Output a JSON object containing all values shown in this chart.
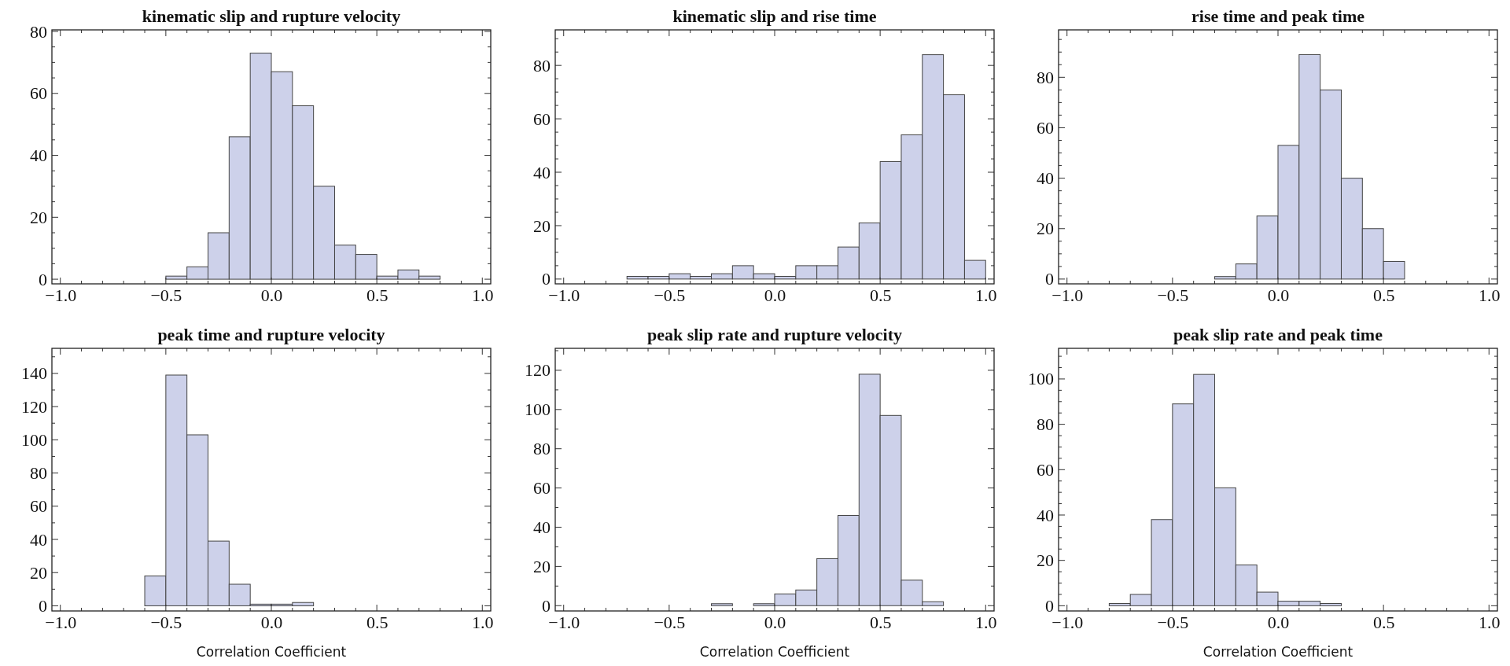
{
  "chart_data": [
    {
      "type": "histogram",
      "title": "kinematic slip and rupture velocity",
      "color": "#cdd1ea",
      "bins": [
        -0.5,
        -0.4,
        -0.3,
        -0.2,
        -0.1,
        0,
        0.1,
        0.2,
        0.3,
        0.4,
        0.5,
        0.6,
        0.7,
        0.8
      ],
      "values": [
        1,
        4,
        15,
        46,
        73,
        67,
        56,
        30,
        11,
        8,
        1,
        3,
        1
      ],
      "xlim": [
        -1.04,
        1.04
      ],
      "ylim": [
        -1.5,
        80.5
      ],
      "xticks": [
        {
          "value": -1,
          "label": "−1.0"
        },
        {
          "value": -0.9,
          "label": null
        },
        {
          "value": -0.8,
          "label": null
        },
        {
          "value": -0.7,
          "label": null
        },
        {
          "value": -0.6,
          "label": null
        },
        {
          "value": -0.5,
          "label": "−0.5"
        },
        {
          "value": -0.4,
          "label": null
        },
        {
          "value": -0.3,
          "label": null
        },
        {
          "value": -0.2,
          "label": null
        },
        {
          "value": -0.1,
          "label": null
        },
        {
          "value": 0,
          "label": "0.0"
        },
        {
          "value": 0.1,
          "label": null
        },
        {
          "value": 0.2,
          "label": null
        },
        {
          "value": 0.3,
          "label": null
        },
        {
          "value": 0.4,
          "label": null
        },
        {
          "value": 0.5,
          "label": "0.5"
        },
        {
          "value": 0.6,
          "label": null
        },
        {
          "value": 0.7,
          "label": null
        },
        {
          "value": 0.8,
          "label": null
        },
        {
          "value": 0.9,
          "label": null
        },
        {
          "value": 1,
          "label": "1.0"
        }
      ],
      "yticks": [
        0,
        {
          "value": 5,
          "label": null
        },
        {
          "value": 10,
          "label": null
        },
        {
          "value": 15,
          "label": null
        },
        20,
        {
          "value": 25,
          "label": null
        },
        {
          "value": 30,
          "label": null
        },
        {
          "value": 35,
          "label": null
        },
        40,
        {
          "value": 45,
          "label": null
        },
        {
          "value": 50,
          "label": null
        },
        {
          "value": 55,
          "label": null
        },
        60,
        {
          "value": 65,
          "label": null
        },
        {
          "value": 70,
          "label": null
        },
        {
          "value": 75,
          "label": null
        },
        80
      ]
    },
    {
      "type": "histogram",
      "title": "kinematic slip and rise time",
      "color": "#cdd1ea",
      "bins": [
        -0.7,
        -0.6,
        -0.5,
        -0.4,
        -0.3,
        -0.2,
        -0.1,
        0,
        0.1,
        0.2,
        0.3,
        0.4,
        0.5,
        0.6,
        0.7,
        0.8,
        0.9,
        1.0
      ],
      "values": [
        1,
        1,
        2,
        1,
        2,
        5,
        2,
        1,
        5,
        5,
        12,
        21,
        44,
        54,
        84,
        69,
        7
      ],
      "xlim": [
        -1.04,
        1.04
      ],
      "ylim": [
        -1.8,
        93.3
      ],
      "xticks": [
        {
          "value": -1,
          "label": "−1.0"
        },
        {
          "value": -0.9,
          "label": null
        },
        {
          "value": -0.8,
          "label": null
        },
        {
          "value": -0.7,
          "label": null
        },
        {
          "value": -0.6,
          "label": null
        },
        {
          "value": -0.5,
          "label": "−0.5"
        },
        {
          "value": -0.4,
          "label": null
        },
        {
          "value": -0.3,
          "label": null
        },
        {
          "value": -0.2,
          "label": null
        },
        {
          "value": -0.1,
          "label": null
        },
        {
          "value": 0,
          "label": "0.0"
        },
        {
          "value": 0.1,
          "label": null
        },
        {
          "value": 0.2,
          "label": null
        },
        {
          "value": 0.3,
          "label": null
        },
        {
          "value": 0.4,
          "label": null
        },
        {
          "value": 0.5,
          "label": "0.5"
        },
        {
          "value": 0.6,
          "label": null
        },
        {
          "value": 0.7,
          "label": null
        },
        {
          "value": 0.8,
          "label": null
        },
        {
          "value": 0.9,
          "label": null
        },
        {
          "value": 1,
          "label": "1.0"
        }
      ],
      "yticks": [
        0,
        {
          "value": 5,
          "label": null
        },
        {
          "value": 10,
          "label": null
        },
        {
          "value": 15,
          "label": null
        },
        20,
        {
          "value": 25,
          "label": null
        },
        {
          "value": 30,
          "label": null
        },
        {
          "value": 35,
          "label": null
        },
        40,
        {
          "value": 45,
          "label": null
        },
        {
          "value": 50,
          "label": null
        },
        {
          "value": 55,
          "label": null
        },
        60,
        {
          "value": 65,
          "label": null
        },
        {
          "value": 70,
          "label": null
        },
        {
          "value": 75,
          "label": null
        },
        80,
        {
          "value": 85,
          "label": null
        },
        {
          "value": 90,
          "label": null
        }
      ]
    },
    {
      "type": "histogram",
      "title": "rise time and peak time",
      "color": "#cdd1ea",
      "bins": [
        -0.3,
        -0.2,
        -0.1,
        0,
        0.1,
        0.2,
        0.3,
        0.4,
        0.5,
        0.6
      ],
      "values": [
        1,
        6,
        25,
        53,
        89,
        75,
        40,
        20,
        7
      ],
      "xlim": [
        -1.04,
        1.04
      ],
      "ylim": [
        -1.9,
        98.8
      ],
      "xticks": [
        {
          "value": -1,
          "label": "−1.0"
        },
        {
          "value": -0.9,
          "label": null
        },
        {
          "value": -0.8,
          "label": null
        },
        {
          "value": -0.7,
          "label": null
        },
        {
          "value": -0.6,
          "label": null
        },
        {
          "value": -0.5,
          "label": "−0.5"
        },
        {
          "value": -0.4,
          "label": null
        },
        {
          "value": -0.3,
          "label": null
        },
        {
          "value": -0.2,
          "label": null
        },
        {
          "value": -0.1,
          "label": null
        },
        {
          "value": 0,
          "label": "0.0"
        },
        {
          "value": 0.1,
          "label": null
        },
        {
          "value": 0.2,
          "label": null
        },
        {
          "value": 0.3,
          "label": null
        },
        {
          "value": 0.4,
          "label": null
        },
        {
          "value": 0.5,
          "label": "0.5"
        },
        {
          "value": 0.6,
          "label": null
        },
        {
          "value": 0.7,
          "label": null
        },
        {
          "value": 0.8,
          "label": null
        },
        {
          "value": 0.9,
          "label": null
        },
        {
          "value": 1,
          "label": "1.0"
        }
      ],
      "yticks": [
        0,
        {
          "value": 5,
          "label": null
        },
        {
          "value": 10,
          "label": null
        },
        {
          "value": 15,
          "label": null
        },
        20,
        {
          "value": 25,
          "label": null
        },
        {
          "value": 30,
          "label": null
        },
        {
          "value": 35,
          "label": null
        },
        40,
        {
          "value": 45,
          "label": null
        },
        {
          "value": 50,
          "label": null
        },
        {
          "value": 55,
          "label": null
        },
        60,
        {
          "value": 65,
          "label": null
        },
        {
          "value": 70,
          "label": null
        },
        {
          "value": 75,
          "label": null
        },
        80,
        {
          "value": 85,
          "label": null
        },
        {
          "value": 90,
          "label": null
        },
        {
          "value": 95,
          "label": null
        }
      ]
    },
    {
      "type": "histogram",
      "title": "peak time and rupture velocity",
      "xlabel": "Correlation Coefficient",
      "color": "#cdd1ea",
      "bins": [
        -0.6,
        -0.5,
        -0.4,
        -0.3,
        -0.2,
        -0.1,
        0,
        0.1,
        0.2
      ],
      "values": [
        18,
        139,
        103,
        39,
        13,
        1,
        1,
        2
      ],
      "xlim": [
        -1.04,
        1.04
      ],
      "ylim": [
        -3.1,
        155.1
      ],
      "xticks": [
        {
          "value": -1,
          "label": "−1.0"
        },
        {
          "value": -0.9,
          "label": null
        },
        {
          "value": -0.8,
          "label": null
        },
        {
          "value": -0.7,
          "label": null
        },
        {
          "value": -0.6,
          "label": null
        },
        {
          "value": -0.5,
          "label": "−0.5"
        },
        {
          "value": -0.4,
          "label": null
        },
        {
          "value": -0.3,
          "label": null
        },
        {
          "value": -0.2,
          "label": null
        },
        {
          "value": -0.1,
          "label": null
        },
        {
          "value": 0,
          "label": "0.0"
        },
        {
          "value": 0.1,
          "label": null
        },
        {
          "value": 0.2,
          "label": null
        },
        {
          "value": 0.3,
          "label": null
        },
        {
          "value": 0.4,
          "label": null
        },
        {
          "value": 0.5,
          "label": "0.5"
        },
        {
          "value": 0.6,
          "label": null
        },
        {
          "value": 0.7,
          "label": null
        },
        {
          "value": 0.8,
          "label": null
        },
        {
          "value": 0.9,
          "label": null
        },
        {
          "value": 1,
          "label": "1.0"
        }
      ],
      "yticks": [
        0,
        {
          "value": 10,
          "label": null
        },
        20,
        {
          "value": 30,
          "label": null
        },
        40,
        {
          "value": 50,
          "label": null
        },
        60,
        {
          "value": 70,
          "label": null
        },
        80,
        {
          "value": 90,
          "label": null
        },
        100,
        {
          "value": 110,
          "label": null
        },
        120,
        {
          "value": 130,
          "label": null
        },
        140,
        {
          "value": 150,
          "label": null
        }
      ]
    },
    {
      "type": "histogram",
      "title": "peak slip rate and rupture velocity",
      "xlabel": "Correlation Coefficient",
      "color": "#cdd1ea",
      "bins": [
        -0.3,
        -0.2,
        -0.1,
        0,
        0.1,
        0.2,
        0.3,
        0.4,
        0.5,
        0.6,
        0.7,
        0.8
      ],
      "values": [
        1,
        0,
        1,
        6,
        8,
        24,
        46,
        118,
        97,
        13,
        2
      ],
      "xlim": [
        -1.04,
        1.04
      ],
      "ylim": [
        -2.7,
        131.2
      ],
      "xticks": [
        {
          "value": -1,
          "label": "−1.0"
        },
        {
          "value": -0.9,
          "label": null
        },
        {
          "value": -0.8,
          "label": null
        },
        {
          "value": -0.7,
          "label": null
        },
        {
          "value": -0.6,
          "label": null
        },
        {
          "value": -0.5,
          "label": "−0.5"
        },
        {
          "value": -0.4,
          "label": null
        },
        {
          "value": -0.3,
          "label": null
        },
        {
          "value": -0.2,
          "label": null
        },
        {
          "value": -0.1,
          "label": null
        },
        {
          "value": 0,
          "label": "0.0"
        },
        {
          "value": 0.1,
          "label": null
        },
        {
          "value": 0.2,
          "label": null
        },
        {
          "value": 0.3,
          "label": null
        },
        {
          "value": 0.4,
          "label": null
        },
        {
          "value": 0.5,
          "label": "0.5"
        },
        {
          "value": 0.6,
          "label": null
        },
        {
          "value": 0.7,
          "label": null
        },
        {
          "value": 0.8,
          "label": null
        },
        {
          "value": 0.9,
          "label": null
        },
        {
          "value": 1,
          "label": "1.0"
        }
      ],
      "yticks": [
        0,
        {
          "value": 10,
          "label": null
        },
        20,
        {
          "value": 30,
          "label": null
        },
        40,
        {
          "value": 50,
          "label": null
        },
        60,
        {
          "value": 70,
          "label": null
        },
        80,
        {
          "value": 90,
          "label": null
        },
        100,
        {
          "value": 110,
          "label": null
        },
        120,
        {
          "value": 130,
          "label": null
        }
      ]
    },
    {
      "type": "histogram",
      "title": "peak slip rate and peak time",
      "xlabel": "Correlation Coefficient",
      "color": "#cdd1ea",
      "bins": [
        -0.8,
        -0.7,
        -0.6,
        -0.5,
        -0.4,
        -0.3,
        -0.2,
        -0.1,
        0,
        0.1,
        0.2,
        0.3
      ],
      "values": [
        1,
        5,
        38,
        89,
        102,
        52,
        18,
        6,
        2,
        2,
        1
      ],
      "xlim": [
        -1.04,
        1.04
      ],
      "ylim": [
        -2.3,
        113.5
      ],
      "xticks": [
        {
          "value": -1,
          "label": "−1.0"
        },
        {
          "value": -0.9,
          "label": null
        },
        {
          "value": -0.8,
          "label": null
        },
        {
          "value": -0.7,
          "label": null
        },
        {
          "value": -0.6,
          "label": null
        },
        {
          "value": -0.5,
          "label": "−0.5"
        },
        {
          "value": -0.4,
          "label": null
        },
        {
          "value": -0.3,
          "label": null
        },
        {
          "value": -0.2,
          "label": null
        },
        {
          "value": -0.1,
          "label": null
        },
        {
          "value": 0,
          "label": "0.0"
        },
        {
          "value": 0.1,
          "label": null
        },
        {
          "value": 0.2,
          "label": null
        },
        {
          "value": 0.3,
          "label": null
        },
        {
          "value": 0.4,
          "label": null
        },
        {
          "value": 0.5,
          "label": "0.5"
        },
        {
          "value": 0.6,
          "label": null
        },
        {
          "value": 0.7,
          "label": null
        },
        {
          "value": 0.8,
          "label": null
        },
        {
          "value": 0.9,
          "label": null
        },
        {
          "value": 1,
          "label": "1.0"
        }
      ],
      "yticks": [
        0,
        {
          "value": 5,
          "label": null
        },
        {
          "value": 10,
          "label": null
        },
        {
          "value": 15,
          "label": null
        },
        20,
        {
          "value": 25,
          "label": null
        },
        {
          "value": 30,
          "label": null
        },
        {
          "value": 35,
          "label": null
        },
        40,
        {
          "value": 45,
          "label": null
        },
        {
          "value": 50,
          "label": null
        },
        {
          "value": 55,
          "label": null
        },
        60,
        {
          "value": 65,
          "label": null
        },
        {
          "value": 70,
          "label": null
        },
        {
          "value": 75,
          "label": null
        },
        80,
        {
          "value": 85,
          "label": null
        },
        {
          "value": 90,
          "label": null
        },
        {
          "value": 95,
          "label": null
        },
        100,
        {
          "value": 105,
          "label": null
        },
        {
          "value": 110,
          "label": null
        }
      ]
    }
  ]
}
